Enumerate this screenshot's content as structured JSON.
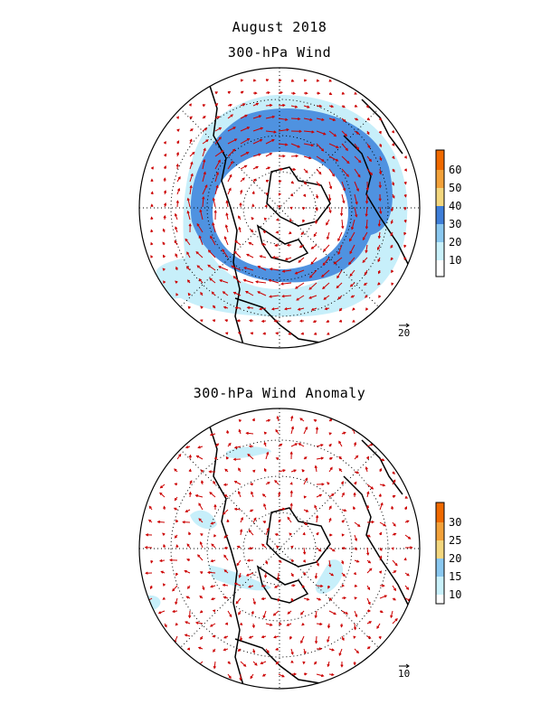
{
  "header": {
    "month_title": "August 2018"
  },
  "panels": [
    {
      "title": "300-hPa Wind",
      "colorbar": {
        "labels": [
          "60",
          "50",
          "40",
          "30",
          "20",
          "10"
        ],
        "colors": [
          "#f06a00",
          "#f3a23a",
          "#f3d77e",
          "#3f7fd9",
          "#8ac8f0",
          "#c9f1fb",
          "#ffffff"
        ]
      },
      "reference_vector_label": "20",
      "shading": {
        "strong_color": "#4f92e0",
        "weak_color": "#c7effa"
      }
    },
    {
      "title": "300-hPa Wind Anomaly",
      "colorbar": {
        "labels": [
          "30",
          "25",
          "20",
          "15",
          "10"
        ],
        "colors": [
          "#f06a00",
          "#f3a23a",
          "#f3d77e",
          "#8ac8f0",
          "#c9f1fb",
          "#ffffff"
        ]
      },
      "reference_vector_label": "10",
      "shading": {
        "strong_color": "#8ac8f0",
        "weak_color": "#c7effa"
      }
    }
  ],
  "vector_color": "#cc0000",
  "coastline_color": "#000000"
}
